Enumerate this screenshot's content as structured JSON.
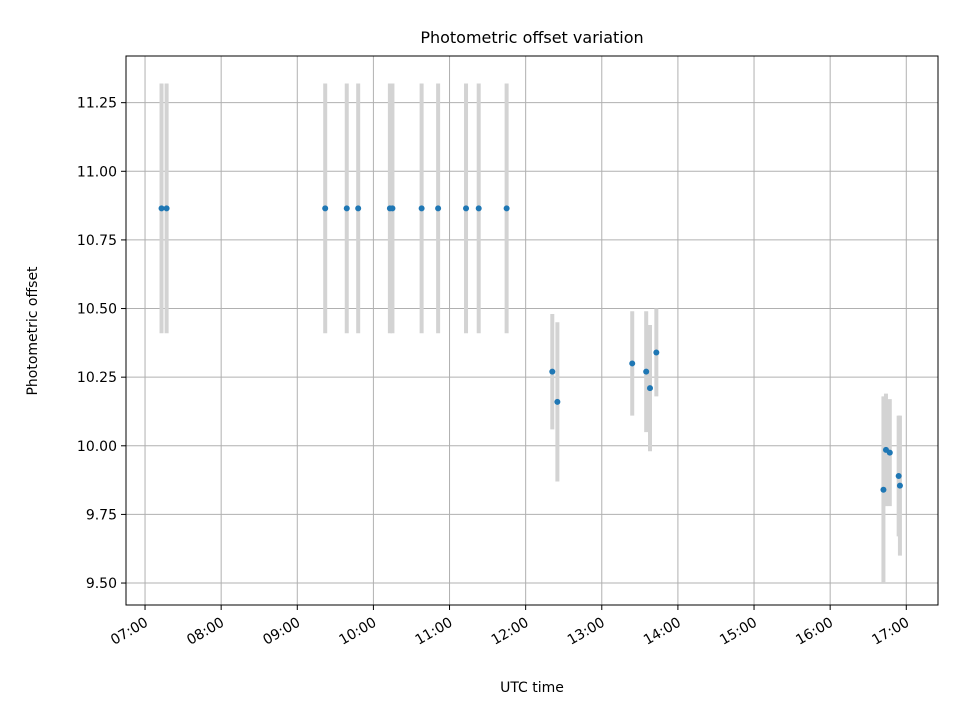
{
  "chart_data": {
    "type": "scatter",
    "title": "Photometric offset variation",
    "xlabel": "UTC time",
    "ylabel": "Photometric offset",
    "xlim": [
      "06:45",
      "17:25"
    ],
    "ylim": [
      9.42,
      11.42
    ],
    "x_ticks": [
      "07:00",
      "08:00",
      "09:00",
      "10:00",
      "11:00",
      "12:00",
      "13:00",
      "14:00",
      "15:00",
      "16:00",
      "17:00"
    ],
    "y_ticks": [
      9.5,
      9.75,
      10.0,
      10.25,
      10.5,
      10.75,
      11.0,
      11.25
    ],
    "grid": true,
    "colors": {
      "point": "#1f77b4",
      "errorbar": "#d3d3d3",
      "grid": "#b0b0b0"
    },
    "series": [
      {
        "points": [
          {
            "x": "07:13",
            "y": 10.865,
            "lo": 10.41,
            "hi": 11.32
          },
          {
            "x": "07:17",
            "y": 10.865,
            "lo": 10.41,
            "hi": 11.32
          },
          {
            "x": "09:22",
            "y": 10.865,
            "lo": 10.41,
            "hi": 11.32
          },
          {
            "x": "09:39",
            "y": 10.865,
            "lo": 10.41,
            "hi": 11.32
          },
          {
            "x": "09:48",
            "y": 10.865,
            "lo": 10.41,
            "hi": 11.32
          },
          {
            "x": "10:13",
            "y": 10.865,
            "lo": 10.41,
            "hi": 11.32
          },
          {
            "x": "10:15",
            "y": 10.865,
            "lo": 10.41,
            "hi": 11.32
          },
          {
            "x": "10:38",
            "y": 10.865,
            "lo": 10.41,
            "hi": 11.32
          },
          {
            "x": "10:51",
            "y": 10.865,
            "lo": 10.41,
            "hi": 11.32
          },
          {
            "x": "11:13",
            "y": 10.865,
            "lo": 10.41,
            "hi": 11.32
          },
          {
            "x": "11:23",
            "y": 10.865,
            "lo": 10.41,
            "hi": 11.32
          },
          {
            "x": "11:45",
            "y": 10.865,
            "lo": 10.41,
            "hi": 11.32
          },
          {
            "x": "12:21",
            "y": 10.27,
            "lo": 10.06,
            "hi": 10.48
          },
          {
            "x": "12:25",
            "y": 10.16,
            "lo": 9.87,
            "hi": 10.45
          },
          {
            "x": "13:24",
            "y": 10.3,
            "lo": 10.11,
            "hi": 10.49
          },
          {
            "x": "13:35",
            "y": 10.27,
            "lo": 10.05,
            "hi": 10.49
          },
          {
            "x": "13:38",
            "y": 10.21,
            "lo": 9.98,
            "hi": 10.44
          },
          {
            "x": "13:43",
            "y": 10.34,
            "lo": 10.18,
            "hi": 10.5
          },
          {
            "x": "16:42",
            "y": 9.84,
            "lo": 9.5,
            "hi": 10.18
          },
          {
            "x": "16:44",
            "y": 9.985,
            "lo": 9.78,
            "hi": 10.19
          },
          {
            "x": "16:47",
            "y": 9.975,
            "lo": 9.78,
            "hi": 10.17
          },
          {
            "x": "16:54",
            "y": 9.89,
            "lo": 9.67,
            "hi": 10.11
          },
          {
            "x": "16:55",
            "y": 9.855,
            "lo": 9.6,
            "hi": 10.11
          }
        ]
      }
    ]
  }
}
